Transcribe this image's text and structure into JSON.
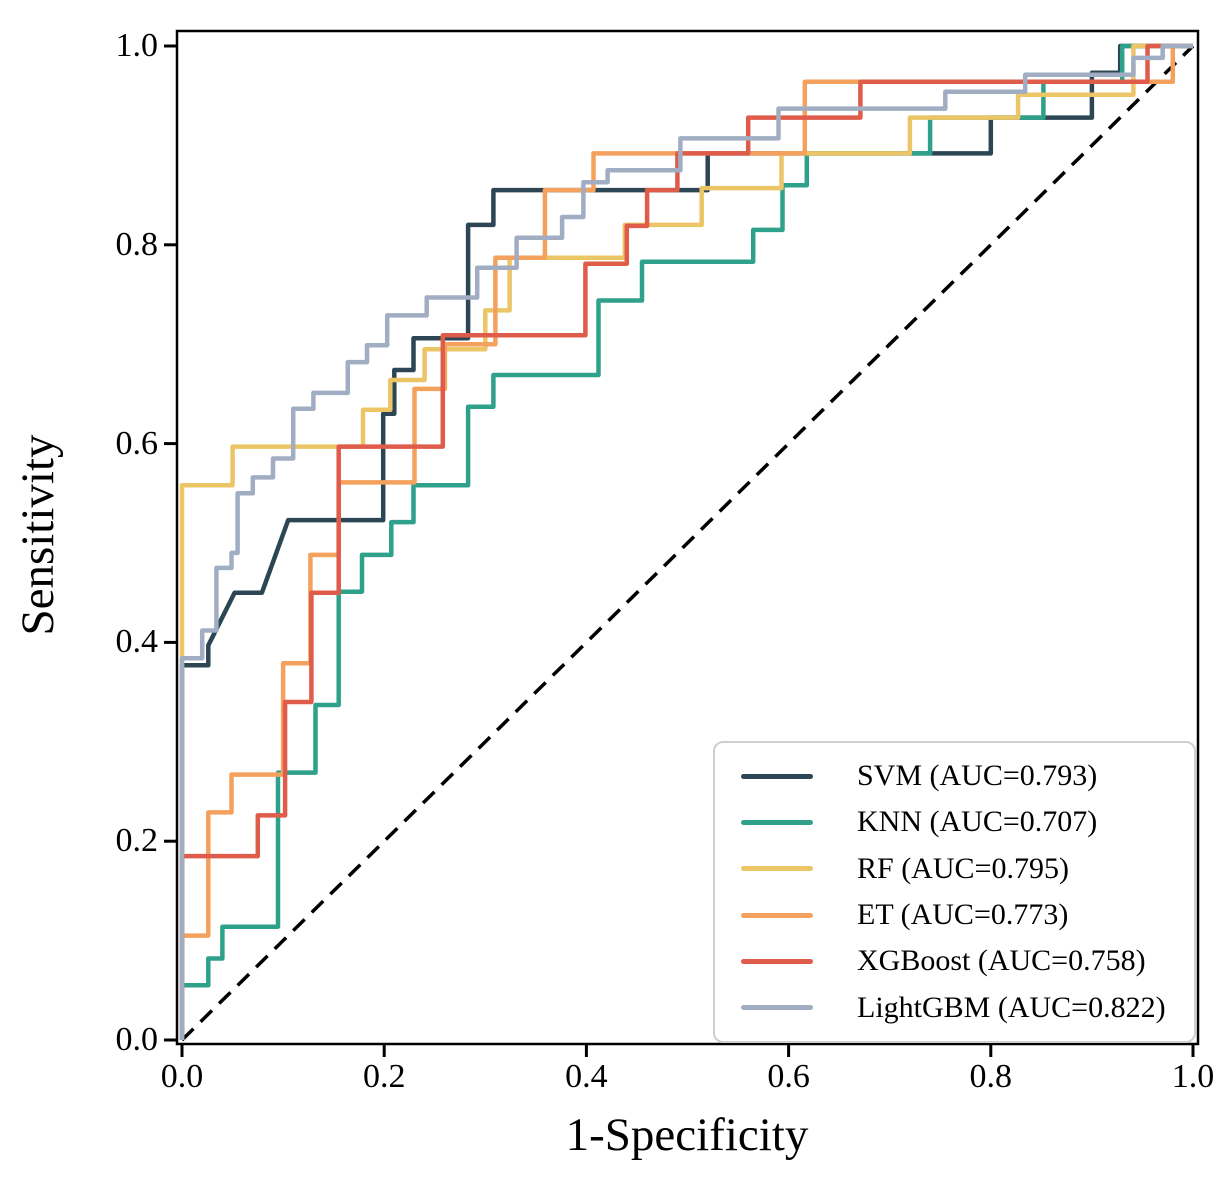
{
  "figure": {
    "xlabel": "1-Specificity",
    "ylabel": "Sensitivity",
    "background": "#ffffff",
    "frame_color": "#000000",
    "legend_border_color": "#cfcfcf"
  },
  "chart_data": {
    "type": "line",
    "subtype": "roc-step-curves",
    "title": "",
    "xlabel": "1-Specificity",
    "ylabel": "Sensitivity",
    "xlim": [
      0,
      1
    ],
    "ylim": [
      0,
      1
    ],
    "x_ticks": [
      0,
      0.2,
      0.4,
      0.6,
      0.8,
      1.0
    ],
    "y_ticks": [
      0,
      0.2,
      0.4,
      0.6,
      0.8,
      1.0
    ],
    "x_tick_labels": [
      "0.0",
      "0.2",
      "0.4",
      "0.6",
      "0.8",
      "1.0"
    ],
    "y_tick_labels": [
      "0.0",
      "0.2",
      "0.4",
      "0.6",
      "0.8",
      "1.0"
    ],
    "grid": false,
    "legend_position": "lower right",
    "reference_line": {
      "name": "chance-diagonal",
      "style": "dashed",
      "color": "#000000",
      "from": [
        0,
        0
      ],
      "to": [
        1,
        1
      ]
    },
    "series": [
      {
        "name": "SVM",
        "auc": 0.793,
        "label": "SVM (AUC=0.793)",
        "color": "#2d4654",
        "points": [
          [
            0,
            0
          ],
          [
            0,
            0.377
          ],
          [
            0.026,
            0.377
          ],
          [
            0.026,
            0.397
          ],
          [
            0.052,
            0.45
          ],
          [
            0.079,
            0.45
          ],
          [
            0.105,
            0.523
          ],
          [
            0.199,
            0.523
          ],
          [
            0.199,
            0.63
          ],
          [
            0.21,
            0.63
          ],
          [
            0.21,
            0.674
          ],
          [
            0.229,
            0.674
          ],
          [
            0.229,
            0.706
          ],
          [
            0.283,
            0.706
          ],
          [
            0.283,
            0.82
          ],
          [
            0.308,
            0.82
          ],
          [
            0.308,
            0.855
          ],
          [
            0.52,
            0.855
          ],
          [
            0.52,
            0.892
          ],
          [
            0.8,
            0.892
          ],
          [
            0.8,
            0.928
          ],
          [
            0.9,
            0.928
          ],
          [
            0.9,
            0.973
          ],
          [
            0.928,
            0.973
          ],
          [
            0.928,
            1
          ],
          [
            1,
            1
          ]
        ]
      },
      {
        "name": "KNN",
        "auc": 0.707,
        "label": "KNN (AUC=0.707)",
        "color": "#2fa18b",
        "points": [
          [
            0,
            0
          ],
          [
            0,
            0.055
          ],
          [
            0.026,
            0.055
          ],
          [
            0.026,
            0.082
          ],
          [
            0.04,
            0.082
          ],
          [
            0.04,
            0.114
          ],
          [
            0.095,
            0.114
          ],
          [
            0.095,
            0.269
          ],
          [
            0.132,
            0.269
          ],
          [
            0.132,
            0.337
          ],
          [
            0.155,
            0.337
          ],
          [
            0.155,
            0.451
          ],
          [
            0.178,
            0.451
          ],
          [
            0.178,
            0.488
          ],
          [
            0.207,
            0.488
          ],
          [
            0.207,
            0.521
          ],
          [
            0.229,
            0.521
          ],
          [
            0.229,
            0.558
          ],
          [
            0.283,
            0.558
          ],
          [
            0.283,
            0.637
          ],
          [
            0.308,
            0.637
          ],
          [
            0.308,
            0.669
          ],
          [
            0.412,
            0.669
          ],
          [
            0.412,
            0.744
          ],
          [
            0.455,
            0.744
          ],
          [
            0.455,
            0.783
          ],
          [
            0.565,
            0.783
          ],
          [
            0.565,
            0.815
          ],
          [
            0.594,
            0.815
          ],
          [
            0.594,
            0.86
          ],
          [
            0.618,
            0.86
          ],
          [
            0.618,
            0.892
          ],
          [
            0.74,
            0.892
          ],
          [
            0.74,
            0.928
          ],
          [
            0.852,
            0.928
          ],
          [
            0.852,
            0.964
          ],
          [
            0.93,
            0.964
          ],
          [
            0.93,
            1
          ],
          [
            1,
            1
          ]
        ]
      },
      {
        "name": "RF",
        "auc": 0.795,
        "label": "RF (AUC=0.795)",
        "color": "#ecc666",
        "points": [
          [
            0,
            0
          ],
          [
            0,
            0.558
          ],
          [
            0.05,
            0.558
          ],
          [
            0.05,
            0.597
          ],
          [
            0.179,
            0.597
          ],
          [
            0.179,
            0.634
          ],
          [
            0.206,
            0.634
          ],
          [
            0.206,
            0.664
          ],
          [
            0.24,
            0.664
          ],
          [
            0.24,
            0.695
          ],
          [
            0.3,
            0.695
          ],
          [
            0.3,
            0.734
          ],
          [
            0.324,
            0.734
          ],
          [
            0.324,
            0.787
          ],
          [
            0.438,
            0.787
          ],
          [
            0.438,
            0.82
          ],
          [
            0.514,
            0.82
          ],
          [
            0.514,
            0.857
          ],
          [
            0.593,
            0.857
          ],
          [
            0.593,
            0.892
          ],
          [
            0.72,
            0.892
          ],
          [
            0.72,
            0.928
          ],
          [
            0.827,
            0.928
          ],
          [
            0.827,
            0.951
          ],
          [
            0.941,
            0.951
          ],
          [
            0.941,
            1
          ],
          [
            1,
            1
          ]
        ]
      },
      {
        "name": "ET",
        "auc": 0.773,
        "label": "ET (AUC=0.773)",
        "color": "#f4a15d",
        "points": [
          [
            0,
            0
          ],
          [
            0,
            0.105
          ],
          [
            0.026,
            0.105
          ],
          [
            0.026,
            0.229
          ],
          [
            0.049,
            0.229
          ],
          [
            0.049,
            0.267
          ],
          [
            0.1,
            0.267
          ],
          [
            0.1,
            0.379
          ],
          [
            0.127,
            0.379
          ],
          [
            0.127,
            0.488
          ],
          [
            0.155,
            0.488
          ],
          [
            0.155,
            0.561
          ],
          [
            0.23,
            0.561
          ],
          [
            0.23,
            0.655
          ],
          [
            0.26,
            0.655
          ],
          [
            0.26,
            0.7
          ],
          [
            0.31,
            0.7
          ],
          [
            0.31,
            0.787
          ],
          [
            0.359,
            0.787
          ],
          [
            0.359,
            0.855
          ],
          [
            0.407,
            0.855
          ],
          [
            0.407,
            0.892
          ],
          [
            0.616,
            0.892
          ],
          [
            0.616,
            0.964
          ],
          [
            0.98,
            0.964
          ],
          [
            0.98,
            1
          ],
          [
            1,
            1
          ]
        ]
      },
      {
        "name": "XGBoost",
        "auc": 0.758,
        "label": "XGBoost (AUC=0.758)",
        "color": "#df5c4a",
        "points": [
          [
            0,
            0
          ],
          [
            0,
            0.185
          ],
          [
            0.075,
            0.185
          ],
          [
            0.075,
            0.226
          ],
          [
            0.102,
            0.226
          ],
          [
            0.102,
            0.34
          ],
          [
            0.128,
            0.34
          ],
          [
            0.128,
            0.45
          ],
          [
            0.155,
            0.45
          ],
          [
            0.155,
            0.597
          ],
          [
            0.258,
            0.597
          ],
          [
            0.258,
            0.709
          ],
          [
            0.399,
            0.709
          ],
          [
            0.399,
            0.781
          ],
          [
            0.44,
            0.781
          ],
          [
            0.44,
            0.819
          ],
          [
            0.46,
            0.819
          ],
          [
            0.46,
            0.855
          ],
          [
            0.49,
            0.855
          ],
          [
            0.49,
            0.892
          ],
          [
            0.56,
            0.892
          ],
          [
            0.56,
            0.928
          ],
          [
            0.671,
            0.928
          ],
          [
            0.671,
            0.964
          ],
          [
            0.955,
            0.964
          ],
          [
            0.955,
            1
          ],
          [
            1,
            1
          ]
        ]
      },
      {
        "name": "LightGBM",
        "auc": 0.822,
        "label": "LightGBM (AUC=0.822)",
        "color": "#a0adc2",
        "points": [
          [
            0,
            0
          ],
          [
            0,
            0.384
          ],
          [
            0.02,
            0.384
          ],
          [
            0.02,
            0.412
          ],
          [
            0.034,
            0.412
          ],
          [
            0.034,
            0.475
          ],
          [
            0.049,
            0.475
          ],
          [
            0.049,
            0.49
          ],
          [
            0.055,
            0.49
          ],
          [
            0.055,
            0.55
          ],
          [
            0.07,
            0.55
          ],
          [
            0.07,
            0.566
          ],
          [
            0.09,
            0.566
          ],
          [
            0.09,
            0.585
          ],
          [
            0.11,
            0.585
          ],
          [
            0.11,
            0.635
          ],
          [
            0.13,
            0.635
          ],
          [
            0.13,
            0.651
          ],
          [
            0.164,
            0.651
          ],
          [
            0.164,
            0.682
          ],
          [
            0.183,
            0.682
          ],
          [
            0.183,
            0.699
          ],
          [
            0.203,
            0.699
          ],
          [
            0.203,
            0.729
          ],
          [
            0.242,
            0.729
          ],
          [
            0.242,
            0.747
          ],
          [
            0.292,
            0.747
          ],
          [
            0.292,
            0.777
          ],
          [
            0.331,
            0.777
          ],
          [
            0.331,
            0.807
          ],
          [
            0.376,
            0.807
          ],
          [
            0.376,
            0.828
          ],
          [
            0.397,
            0.828
          ],
          [
            0.397,
            0.863
          ],
          [
            0.421,
            0.863
          ],
          [
            0.421,
            0.875
          ],
          [
            0.493,
            0.875
          ],
          [
            0.493,
            0.907
          ],
          [
            0.59,
            0.907
          ],
          [
            0.59,
            0.937
          ],
          [
            0.755,
            0.937
          ],
          [
            0.755,
            0.954
          ],
          [
            0.834,
            0.954
          ],
          [
            0.834,
            0.971
          ],
          [
            0.941,
            0.971
          ],
          [
            0.941,
            0.988
          ],
          [
            0.97,
            0.988
          ],
          [
            0.97,
            1
          ],
          [
            1,
            1
          ]
        ]
      }
    ]
  }
}
